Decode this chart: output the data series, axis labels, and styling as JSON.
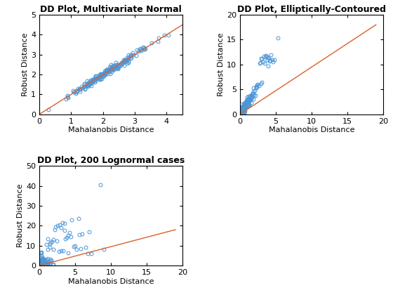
{
  "plot1": {
    "title": "DD Plot, Multivariate Normal",
    "xlabel": "Mahalanobis Distance",
    "ylabel": "Robust Distance",
    "xlim": [
      0,
      4.5
    ],
    "ylim": [
      0,
      5
    ],
    "xticks": [
      0,
      1,
      2,
      3,
      4
    ],
    "yticks": [
      0,
      1,
      2,
      3,
      4,
      5
    ],
    "line_color": "#d9622b",
    "marker_color": "#4c96d7",
    "line_x": [
      0,
      4.5
    ],
    "line_y": [
      0,
      4.5
    ]
  },
  "plot2": {
    "title": "DD Plot, Elliptically-Contoured",
    "xlabel": "Mahalanobis Distance",
    "ylabel": "Robust Distance",
    "xlim": [
      0,
      20
    ],
    "ylim": [
      0,
      20
    ],
    "xticks": [
      0,
      5,
      10,
      15,
      20
    ],
    "yticks": [
      0,
      5,
      10,
      15,
      20
    ],
    "line_color": "#d9622b",
    "marker_color": "#4c96d7",
    "line_x": [
      0,
      19
    ],
    "line_y": [
      0,
      18
    ]
  },
  "plot3": {
    "title": "DD Plot, 200 Lognormal cases",
    "xlabel": "Mahalanobis Distance",
    "ylabel": "Robust Distance",
    "xlim": [
      0,
      20
    ],
    "ylim": [
      0,
      50
    ],
    "xticks": [
      0,
      5,
      10,
      15,
      20
    ],
    "yticks": [
      0,
      10,
      20,
      30,
      40,
      50
    ],
    "line_color": "#d9622b",
    "marker_color": "#4c96d7",
    "line_x": [
      0,
      19
    ],
    "line_y": [
      0,
      18
    ]
  },
  "title_fontsize": 9,
  "label_fontsize": 8,
  "tick_fontsize": 8
}
